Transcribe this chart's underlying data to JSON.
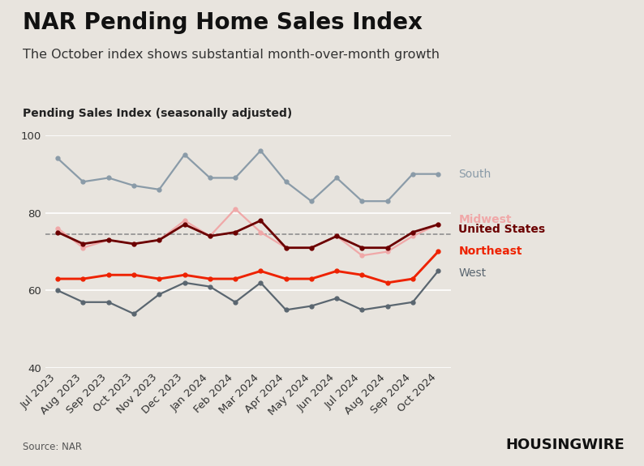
{
  "title": "NAR Pending Home Sales Index",
  "subtitle": "The October index shows substantial month-over-month growth",
  "ylabel": "Pending Sales Index (seasonally adjusted)",
  "source": "Source: NAR",
  "background_color": "#e8e4de",
  "plot_bg_color": "#e8e4de",
  "months": [
    "Jul 2023",
    "Aug 2023",
    "Sep 2023",
    "Oct 2023",
    "Nov 2023",
    "Dec 2023",
    "Jan 2024",
    "Feb 2024",
    "Mar 2024",
    "Apr 2024",
    "May 2024",
    "Jun 2024",
    "Jul 2024",
    "Aug 2024",
    "Sep 2024",
    "Oct 2024"
  ],
  "south": [
    94,
    88,
    89,
    87,
    86,
    95,
    89,
    89,
    96,
    88,
    83,
    89,
    83,
    83,
    90,
    90
  ],
  "midwest": [
    76,
    71,
    73,
    72,
    73,
    78,
    74,
    81,
    75,
    71,
    71,
    74,
    69,
    70,
    74,
    77
  ],
  "united_states": [
    75,
    72,
    73,
    72,
    73,
    77,
    74,
    75,
    78,
    71,
    71,
    74,
    71,
    71,
    75,
    77
  ],
  "northeast": [
    63,
    63,
    64,
    64,
    63,
    64,
    63,
    63,
    65,
    63,
    63,
    65,
    64,
    62,
    63,
    70
  ],
  "west": [
    60,
    57,
    57,
    54,
    59,
    62,
    61,
    57,
    62,
    55,
    56,
    58,
    55,
    56,
    57,
    65
  ],
  "south_color": "#8a9ba8",
  "midwest_color": "#f0a8a8",
  "us_color": "#6b0000",
  "northeast_color": "#ee2200",
  "west_color": "#5a6670",
  "dashed_line_y": 74.5,
  "ylim": [
    40,
    100
  ],
  "yticks": [
    40,
    60,
    80,
    100
  ],
  "title_fontsize": 20,
  "subtitle_fontsize": 11.5,
  "ylabel_fontsize": 10,
  "tick_fontsize": 9.5,
  "legend_fontsize": 10
}
